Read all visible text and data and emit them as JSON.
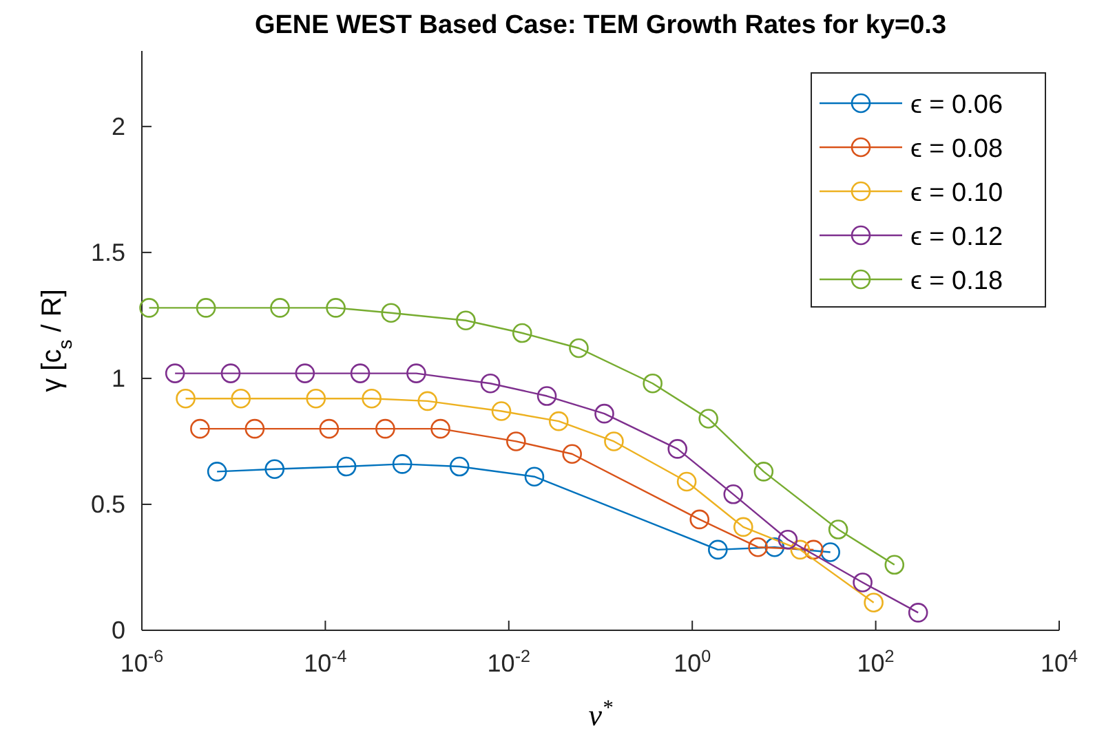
{
  "chart_data": {
    "type": "line",
    "title": "GENE WEST Based Case: TEM Growth Rates for ky=0.3",
    "xlabel": "ν$^{*}$",
    "ylabel": "γ [c$_{s}$ / R]",
    "log": "x",
    "marker": "circle",
    "legend": "top right",
    "grid": false,
    "xlim": [
      1e-06,
      10000
    ],
    "ylim": [
      0,
      2.3
    ],
    "xticks": [
      {
        "value": 1e-06,
        "label": "10$^{-6}$"
      },
      {
        "value": 0.0001,
        "label": "10$^{-4}$"
      },
      {
        "value": 0.01,
        "label": "10$^{-2}$"
      },
      {
        "value": 1,
        "label": "10$^{0}$"
      },
      {
        "value": 100,
        "label": "10$^{2}$"
      },
      {
        "value": 10000,
        "label": "10$^{4}$"
      }
    ],
    "yticks": [
      0,
      0.5,
      1,
      1.5,
      2
    ],
    "series": [
      {
        "name": "ϵ = 0.06",
        "color": "#0072bd",
        "x": [
          6.6e-06,
          2.8e-05,
          0.00017,
          0.00069,
          0.0029,
          0.019,
          1.9,
          7.9,
          32
        ],
        "values": [
          0.63,
          0.64,
          0.65,
          0.66,
          0.65,
          0.61,
          0.32,
          0.33,
          0.31
        ]
      },
      {
        "name": "ϵ = 0.08",
        "color": "#d95319",
        "x": [
          4.3e-06,
          1.7e-05,
          0.00011,
          0.00045,
          0.0018,
          0.012,
          0.049,
          1.2,
          5.2,
          21
        ],
        "values": [
          0.8,
          0.8,
          0.8,
          0.8,
          0.8,
          0.75,
          0.7,
          0.44,
          0.33,
          0.32
        ]
      },
      {
        "name": "ϵ = 0.10",
        "color": "#edb120",
        "x": [
          3e-06,
          1.2e-05,
          7.9e-05,
          0.00032,
          0.0013,
          0.0083,
          0.035,
          0.14,
          0.87,
          3.6,
          15,
          95
        ],
        "values": [
          0.92,
          0.92,
          0.92,
          0.92,
          0.91,
          0.87,
          0.83,
          0.75,
          0.59,
          0.41,
          0.32,
          0.11
        ]
      },
      {
        "name": "ϵ = 0.12",
        "color": "#7e2f8e",
        "x": [
          2.3e-06,
          9.3e-06,
          6e-05,
          0.00024,
          0.00098,
          0.0063,
          0.026,
          0.11,
          0.69,
          2.8,
          11,
          72,
          290
        ],
        "values": [
          1.02,
          1.02,
          1.02,
          1.02,
          1.02,
          0.98,
          0.93,
          0.86,
          0.72,
          0.54,
          0.36,
          0.19,
          0.07
        ]
      },
      {
        "name": "ϵ = 0.18",
        "color": "#77ac30",
        "x": [
          1.2e-06,
          5e-06,
          3.2e-05,
          0.00013,
          0.00052,
          0.0034,
          0.014,
          0.058,
          0.37,
          1.5,
          6.0,
          39,
          160
        ],
        "values": [
          1.28,
          1.28,
          1.28,
          1.28,
          1.26,
          1.23,
          1.18,
          1.12,
          0.98,
          0.84,
          0.63,
          0.4,
          0.26
        ]
      }
    ]
  }
}
